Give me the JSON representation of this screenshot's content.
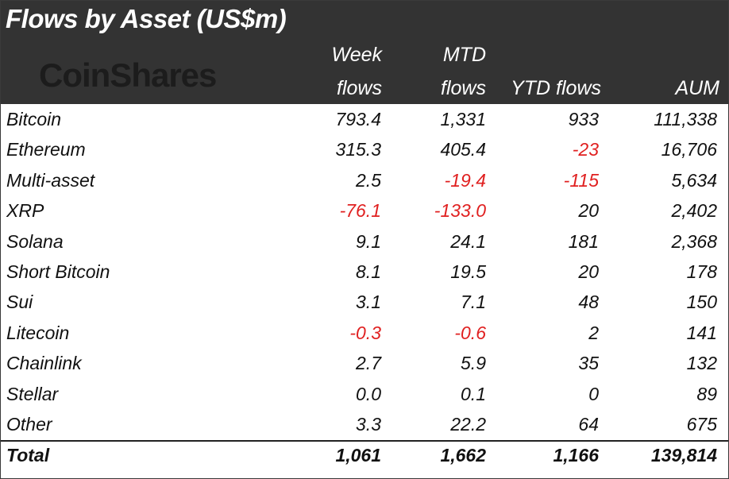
{
  "title": "Flows by Asset (US$m)",
  "logo": "CoinShares",
  "columns": {
    "week": [
      "Week",
      "flows"
    ],
    "mtd": [
      "MTD",
      "flows"
    ],
    "ytd": "YTD flows",
    "aum": "AUM"
  },
  "rows": [
    {
      "name": "Bitcoin",
      "week": "793.4",
      "mtd": "1,331",
      "ytd": "933",
      "aum": "111,338"
    },
    {
      "name": "Ethereum",
      "week": "315.3",
      "mtd": "405.4",
      "ytd": "-23",
      "aum": "16,706"
    },
    {
      "name": "Multi-asset",
      "week": "2.5",
      "mtd": "-19.4",
      "ytd": "-115",
      "aum": "5,634"
    },
    {
      "name": "XRP",
      "week": "-76.1",
      "mtd": "-133.0",
      "ytd": "20",
      "aum": "2,402"
    },
    {
      "name": "Solana",
      "week": "9.1",
      "mtd": "24.1",
      "ytd": "181",
      "aum": "2,368"
    },
    {
      "name": "Short Bitcoin",
      "week": "8.1",
      "mtd": "19.5",
      "ytd": "20",
      "aum": "178"
    },
    {
      "name": "Sui",
      "week": "3.1",
      "mtd": "7.1",
      "ytd": "48",
      "aum": "150"
    },
    {
      "name": "Litecoin",
      "week": "-0.3",
      "mtd": "-0.6",
      "ytd": "2",
      "aum": "141"
    },
    {
      "name": "Chainlink",
      "week": "2.7",
      "mtd": "5.9",
      "ytd": "35",
      "aum": "132"
    },
    {
      "name": "Stellar",
      "week": "0.0",
      "mtd": "0.1",
      "ytd": "0",
      "aum": "89"
    },
    {
      "name": "Other",
      "week": "3.3",
      "mtd": "22.2",
      "ytd": "64",
      "aum": "675"
    }
  ],
  "total": {
    "name": "Total",
    "week": "1,061",
    "mtd": "1,662",
    "ytd": "1,166",
    "aum": "139,814"
  },
  "colors": {
    "header_bg": "#333333",
    "negative": "#e02020",
    "text": "#111111"
  },
  "chart_data": {
    "type": "table",
    "title": "Flows by Asset (US$m)",
    "columns": [
      "Week flows",
      "MTD flows",
      "YTD flows",
      "AUM"
    ],
    "rows": [
      {
        "asset": "Bitcoin",
        "values": [
          793.4,
          1331,
          933,
          111338
        ]
      },
      {
        "asset": "Ethereum",
        "values": [
          315.3,
          405.4,
          -23,
          16706
        ]
      },
      {
        "asset": "Multi-asset",
        "values": [
          2.5,
          -19.4,
          -115,
          5634
        ]
      },
      {
        "asset": "XRP",
        "values": [
          -76.1,
          -133.0,
          20,
          2402
        ]
      },
      {
        "asset": "Solana",
        "values": [
          9.1,
          24.1,
          181,
          2368
        ]
      },
      {
        "asset": "Short Bitcoin",
        "values": [
          8.1,
          19.5,
          20,
          178
        ]
      },
      {
        "asset": "Sui",
        "values": [
          3.1,
          7.1,
          48,
          150
        ]
      },
      {
        "asset": "Litecoin",
        "values": [
          -0.3,
          -0.6,
          2,
          141
        ]
      },
      {
        "asset": "Chainlink",
        "values": [
          2.7,
          5.9,
          35,
          132
        ]
      },
      {
        "asset": "Stellar",
        "values": [
          0.0,
          0.1,
          0,
          89
        ]
      },
      {
        "asset": "Other",
        "values": [
          3.3,
          22.2,
          64,
          675
        ]
      }
    ],
    "total": {
      "asset": "Total",
      "values": [
        1061,
        1662,
        1166,
        139814
      ]
    }
  }
}
